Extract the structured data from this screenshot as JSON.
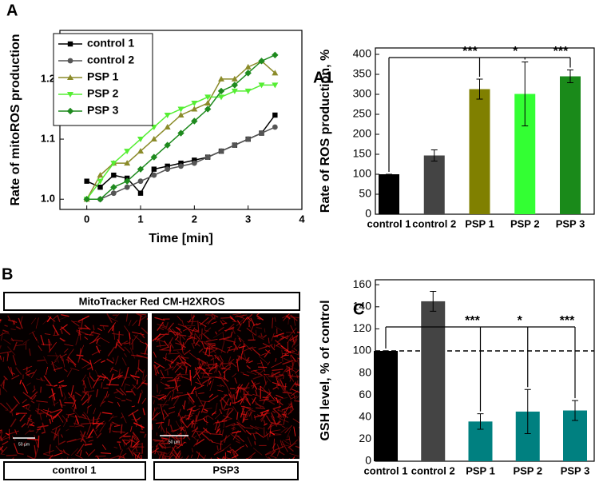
{
  "chart_data": [
    {
      "type": "line",
      "panel_label": "A",
      "x_label": "Time [min]",
      "y_label": "Rate of mitoROS production",
      "x": [
        0,
        0.25,
        0.5,
        0.75,
        1,
        1.25,
        1.5,
        1.75,
        2,
        2.25,
        2.5,
        2.75,
        3,
        3.25,
        3.5
      ],
      "series": [
        {
          "name": "control 1",
          "color": "#000000",
          "marker": "square",
          "values": [
            1.03,
            1.02,
            1.04,
            1.035,
            1.01,
            1.05,
            1.055,
            1.06,
            1.065,
            1.07,
            1.08,
            1.09,
            1.1,
            1.11,
            1.14
          ]
        },
        {
          "name": "control 2",
          "color": "#555555",
          "marker": "circle",
          "values": [
            1.0,
            1.0,
            1.01,
            1.02,
            1.03,
            1.04,
            1.05,
            1.055,
            1.06,
            1.07,
            1.08,
            1.09,
            1.1,
            1.11,
            1.12
          ]
        },
        {
          "name": "PSP 1",
          "color": "#8b8b2a",
          "marker": "triangle-up",
          "values": [
            1.0,
            1.04,
            1.06,
            1.06,
            1.08,
            1.1,
            1.12,
            1.14,
            1.15,
            1.16,
            1.2,
            1.2,
            1.22,
            1.23,
            1.21
          ]
        },
        {
          "name": "PSP 2",
          "color": "#55ee33",
          "marker": "triangle-down",
          "values": [
            1.0,
            1.03,
            1.06,
            1.08,
            1.1,
            1.12,
            1.14,
            1.15,
            1.16,
            1.17,
            1.17,
            1.18,
            1.18,
            1.19,
            1.19
          ]
        },
        {
          "name": "PSP 3",
          "color": "#1e8a1e",
          "marker": "diamond",
          "values": [
            1.0,
            1.0,
            1.02,
            1.03,
            1.05,
            1.07,
            1.09,
            1.11,
            1.13,
            1.15,
            1.18,
            1.19,
            1.21,
            1.23,
            1.24
          ]
        }
      ],
      "xlim": [
        -0.5,
        4
      ],
      "xticks": [
        0,
        1,
        2,
        3,
        4
      ],
      "ylim": [
        0.983,
        1.281
      ],
      "yticks": [
        {
          "value": 1,
          "label": "1.0"
        },
        1.1,
        1.2
      ],
      "grid": false,
      "legend": "upper left"
    },
    {
      "type": "bar",
      "panel_label": "A1",
      "y_label": "Rate of ROS production, %",
      "categories": [
        "control 1",
        "control 2",
        "PSP 1",
        "PSP 2",
        "PSP 3"
      ],
      "values": [
        100,
        147,
        313,
        301,
        345
      ],
      "errors": [
        0,
        14,
        25,
        80,
        16
      ],
      "colors": [
        "#000000",
        "#444444",
        "#808000",
        "#33ff33",
        "#1a8a1a"
      ],
      "annotations": [
        "***",
        "*",
        "***"
      ],
      "ylim": [
        0,
        416
      ],
      "yticks": [
        0,
        50,
        100,
        150,
        200,
        250,
        300,
        350,
        400
      ],
      "grid": false
    },
    {
      "type": "bar",
      "panel_label": "C",
      "y_label": "GSH level, % of control",
      "categories": [
        "control 1",
        "control 2",
        "PSP 1",
        "PSP 2",
        "PSP 3"
      ],
      "values": [
        100,
        145,
        36,
        45,
        46
      ],
      "errors": [
        0,
        9,
        7,
        20,
        9
      ],
      "colors": [
        "#000000",
        "#444444",
        "#008080",
        "#008080",
        "#008080"
      ],
      "annotations": [
        "***",
        "*",
        "***"
      ],
      "hline": 100,
      "ylim": [
        0,
        164.5
      ],
      "yticks": [
        0,
        20,
        40,
        60,
        80,
        100,
        120,
        140,
        160
      ],
      "grid": false
    }
  ],
  "panel_b": {
    "label": "B",
    "title": "MitoTracker Red CM-H2XROS",
    "images": [
      {
        "caption": "control 1",
        "scale": "50 µm"
      },
      {
        "caption": "PSP3",
        "scale": "50 µm"
      }
    ]
  }
}
